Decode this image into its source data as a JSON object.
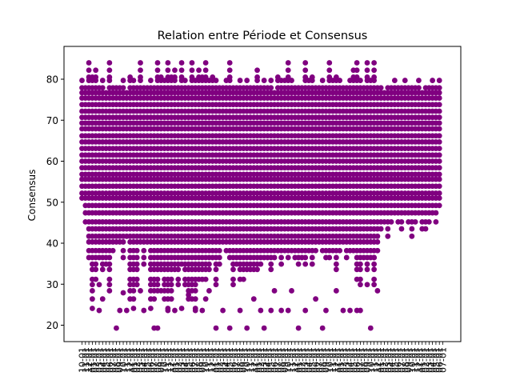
{
  "chart_data": {
    "type": "scatter",
    "title": "Relation entre Période et Consensus",
    "xlabel": "",
    "ylabel": "Consensus",
    "ylim": [
      16,
      88
    ],
    "yticks": [
      20,
      30,
      40,
      50,
      60,
      70,
      80
    ],
    "grid": false,
    "legend": "none",
    "marker_color": "#800080",
    "x_tick_labels": [
      "10-01",
      "11-01",
      "12-01",
      "01-01",
      "02-01",
      "03-01",
      "04-01",
      "05-01",
      "06-01",
      "07-01",
      "08-01",
      "09-01",
      "10-01",
      "11-01",
      "12-01",
      "01-01",
      "02-01",
      "03-01",
      "04-01",
      "05-01",
      "06-01",
      "07-01",
      "08-01",
      "09-01",
      "10-01",
      "11-01",
      "12-01",
      "01-01",
      "02-01",
      "03-01",
      "04-01",
      "05-01",
      "06-01",
      "07-01",
      "08-01",
      "09-01",
      "10-01",
      "11-01",
      "12-01",
      "01-01",
      "02-01",
      "03-01",
      "04-01",
      "05-01",
      "06-01",
      "07-01",
      "08-01",
      "09-01",
      "10-01",
      "11-01",
      "12-01",
      "01-01",
      "02-01",
      "03-01",
      "04-01",
      "05-01",
      "06-01",
      "07-01",
      "08-01",
      "09-01",
      "10-01",
      "11-01",
      "12-01",
      "01-01",
      "02-01",
      "03-01",
      "04-01",
      "05-01",
      "06-01",
      "07-01",
      "08-01",
      "09-01",
      "10-01",
      "11-01",
      "12-01",
      "01-01",
      "02-01",
      "03-01",
      "04-01",
      "05-01",
      "06-01",
      "07-01",
      "08-01",
      "09-01",
      "10-01",
      "11-01",
      "12-01",
      "01-01",
      "02-01",
      "03-01",
      "04-01",
      "05-01",
      "06-01",
      "07-01",
      "08-01",
      "09-01",
      "10-01",
      "11-01",
      "12-01",
      "01-01",
      "02-01",
      "03-01",
      "04-01",
      "05-01",
      "06-01",
      "07-01"
    ],
    "y_levels": [
      19.3,
      23.6,
      24.1,
      26.4,
      28.4,
      29.9,
      31.2,
      33.6,
      34.9,
      36.5,
      38.2,
      40.3,
      41.7,
      43.5,
      45.2,
      47.4,
      49.2,
      51.0,
      52.2,
      53.9,
      55.6,
      56.8,
      58.4,
      60.0,
      61.5,
      63.1,
      64.7,
      66.2,
      67.9,
      69.3,
      70.7,
      72.2,
      73.8,
      75.4,
      76.7,
      77.9,
      79.7,
      80.5,
      82.2,
      84.0
    ],
    "column_ranges": [
      [
        50,
        80
      ],
      [
        45,
        79
      ],
      [
        36,
        84
      ],
      [
        24,
        82
      ],
      [
        30,
        83
      ],
      [
        35,
        79
      ],
      [
        33,
        80
      ],
      [
        34,
        77
      ],
      [
        27,
        84
      ],
      [
        38,
        78
      ],
      [
        40,
        79
      ],
      [
        39,
        78
      ],
      [
        35,
        80
      ],
      [
        41,
        77
      ],
      [
        25,
        81
      ],
      [
        24,
        80
      ],
      [
        29,
        79
      ],
      [
        39,
        84
      ],
      [
        34,
        79
      ],
      [
        39,
        78
      ],
      [
        24,
        80
      ],
      [
        26,
        79
      ],
      [
        28,
        84
      ],
      [
        33,
        82
      ],
      [
        26,
        80
      ],
      [
        24,
        84
      ],
      [
        28,
        82
      ],
      [
        32,
        83
      ],
      [
        29,
        79
      ],
      [
        34,
        84
      ],
      [
        29,
        80
      ],
      [
        25,
        79
      ],
      [
        26,
        84
      ],
      [
        24,
        80
      ],
      [
        31,
        83
      ],
      [
        31,
        81
      ],
      [
        31,
        84
      ],
      [
        33,
        80
      ],
      [
        36,
        82
      ],
      [
        29,
        80
      ],
      [
        34,
        78
      ],
      [
        40,
        79
      ],
      [
        38,
        80
      ],
      [
        36,
        84
      ],
      [
        29,
        79
      ],
      [
        34,
        79
      ],
      [
        30,
        80
      ],
      [
        31,
        78
      ],
      [
        33,
        80
      ],
      [
        32,
        79
      ],
      [
        33,
        79
      ],
      [
        32,
        83
      ],
      [
        34,
        79
      ],
      [
        35,
        80
      ],
      [
        36,
        79
      ],
      [
        32,
        80
      ],
      [
        36,
        77
      ],
      [
        37,
        82
      ],
      [
        34,
        80
      ],
      [
        37,
        80
      ],
      [
        35,
        84
      ],
      [
        38,
        80
      ],
      [
        36,
        79
      ],
      [
        34,
        78
      ],
      [
        35,
        79
      ],
      [
        34,
        84
      ],
      [
        37,
        80
      ],
      [
        34,
        82
      ],
      [
        38,
        78
      ],
      [
        39,
        79
      ],
      [
        37,
        80
      ],
      [
        36,
        79
      ],
      [
        35,
        84
      ],
      [
        37,
        80
      ],
      [
        33,
        82
      ],
      [
        38,
        80
      ],
      [
        39,
        78
      ],
      [
        36,
        79
      ],
      [
        38,
        80
      ],
      [
        37,
        83
      ],
      [
        30,
        84
      ],
      [
        29,
        80
      ],
      [
        36,
        79
      ],
      [
        33,
        84
      ],
      [
        35,
        80
      ],
      [
        29,
        84
      ],
      [
        38,
        79
      ],
      [
        43,
        78
      ],
      [
        44,
        77
      ],
      [
        41,
        78
      ],
      [
        45,
        79
      ],
      [
        47,
        80
      ],
      [
        44,
        78
      ],
      [
        42,
        79
      ],
      [
        46,
        80
      ],
      [
        45,
        78
      ],
      [
        41,
        78
      ],
      [
        44,
        79
      ],
      [
        46,
        80
      ],
      [
        43,
        77
      ],
      [
        42,
        79
      ],
      [
        45,
        78
      ],
      [
        47,
        80
      ],
      [
        44,
        79
      ],
      [
        48,
        80
      ]
    ],
    "outliers": [
      [
        5,
        23.6
      ],
      [
        5,
        29.9
      ],
      [
        6,
        26.4
      ],
      [
        10,
        19.3
      ],
      [
        11,
        23.6
      ],
      [
        12,
        27.9
      ],
      [
        13,
        23.6
      ],
      [
        17,
        28.4
      ],
      [
        18,
        23.6
      ],
      [
        21,
        19.3
      ],
      [
        22,
        19.3
      ],
      [
        23,
        28.4
      ],
      [
        25,
        23.6
      ],
      [
        26,
        26.4
      ],
      [
        27,
        23.6
      ],
      [
        29,
        24.1
      ],
      [
        31,
        27.4
      ],
      [
        33,
        23.6
      ],
      [
        35,
        23.6
      ],
      [
        36,
        26.4
      ],
      [
        37,
        28.4
      ],
      [
        39,
        19.3
      ],
      [
        41,
        23.6
      ],
      [
        43,
        19.3
      ],
      [
        46,
        23.6
      ],
      [
        48,
        19.3
      ],
      [
        50,
        26.4
      ],
      [
        52,
        23.6
      ],
      [
        53,
        19.3
      ],
      [
        55,
        23.6
      ],
      [
        56,
        28.4
      ],
      [
        58,
        23.6
      ],
      [
        60,
        23.6
      ],
      [
        61,
        28.4
      ],
      [
        63,
        19.3
      ],
      [
        65,
        23.6
      ],
      [
        68,
        26.4
      ],
      [
        70,
        19.3
      ],
      [
        71,
        23.6
      ],
      [
        74,
        28.4
      ],
      [
        76,
        23.6
      ],
      [
        78,
        23.6
      ],
      [
        80,
        23.6
      ],
      [
        81,
        23.6
      ],
      [
        83,
        29.9
      ],
      [
        84,
        19.3
      ],
      [
        85,
        36.5
      ],
      [
        86,
        28.4
      ]
    ]
  }
}
